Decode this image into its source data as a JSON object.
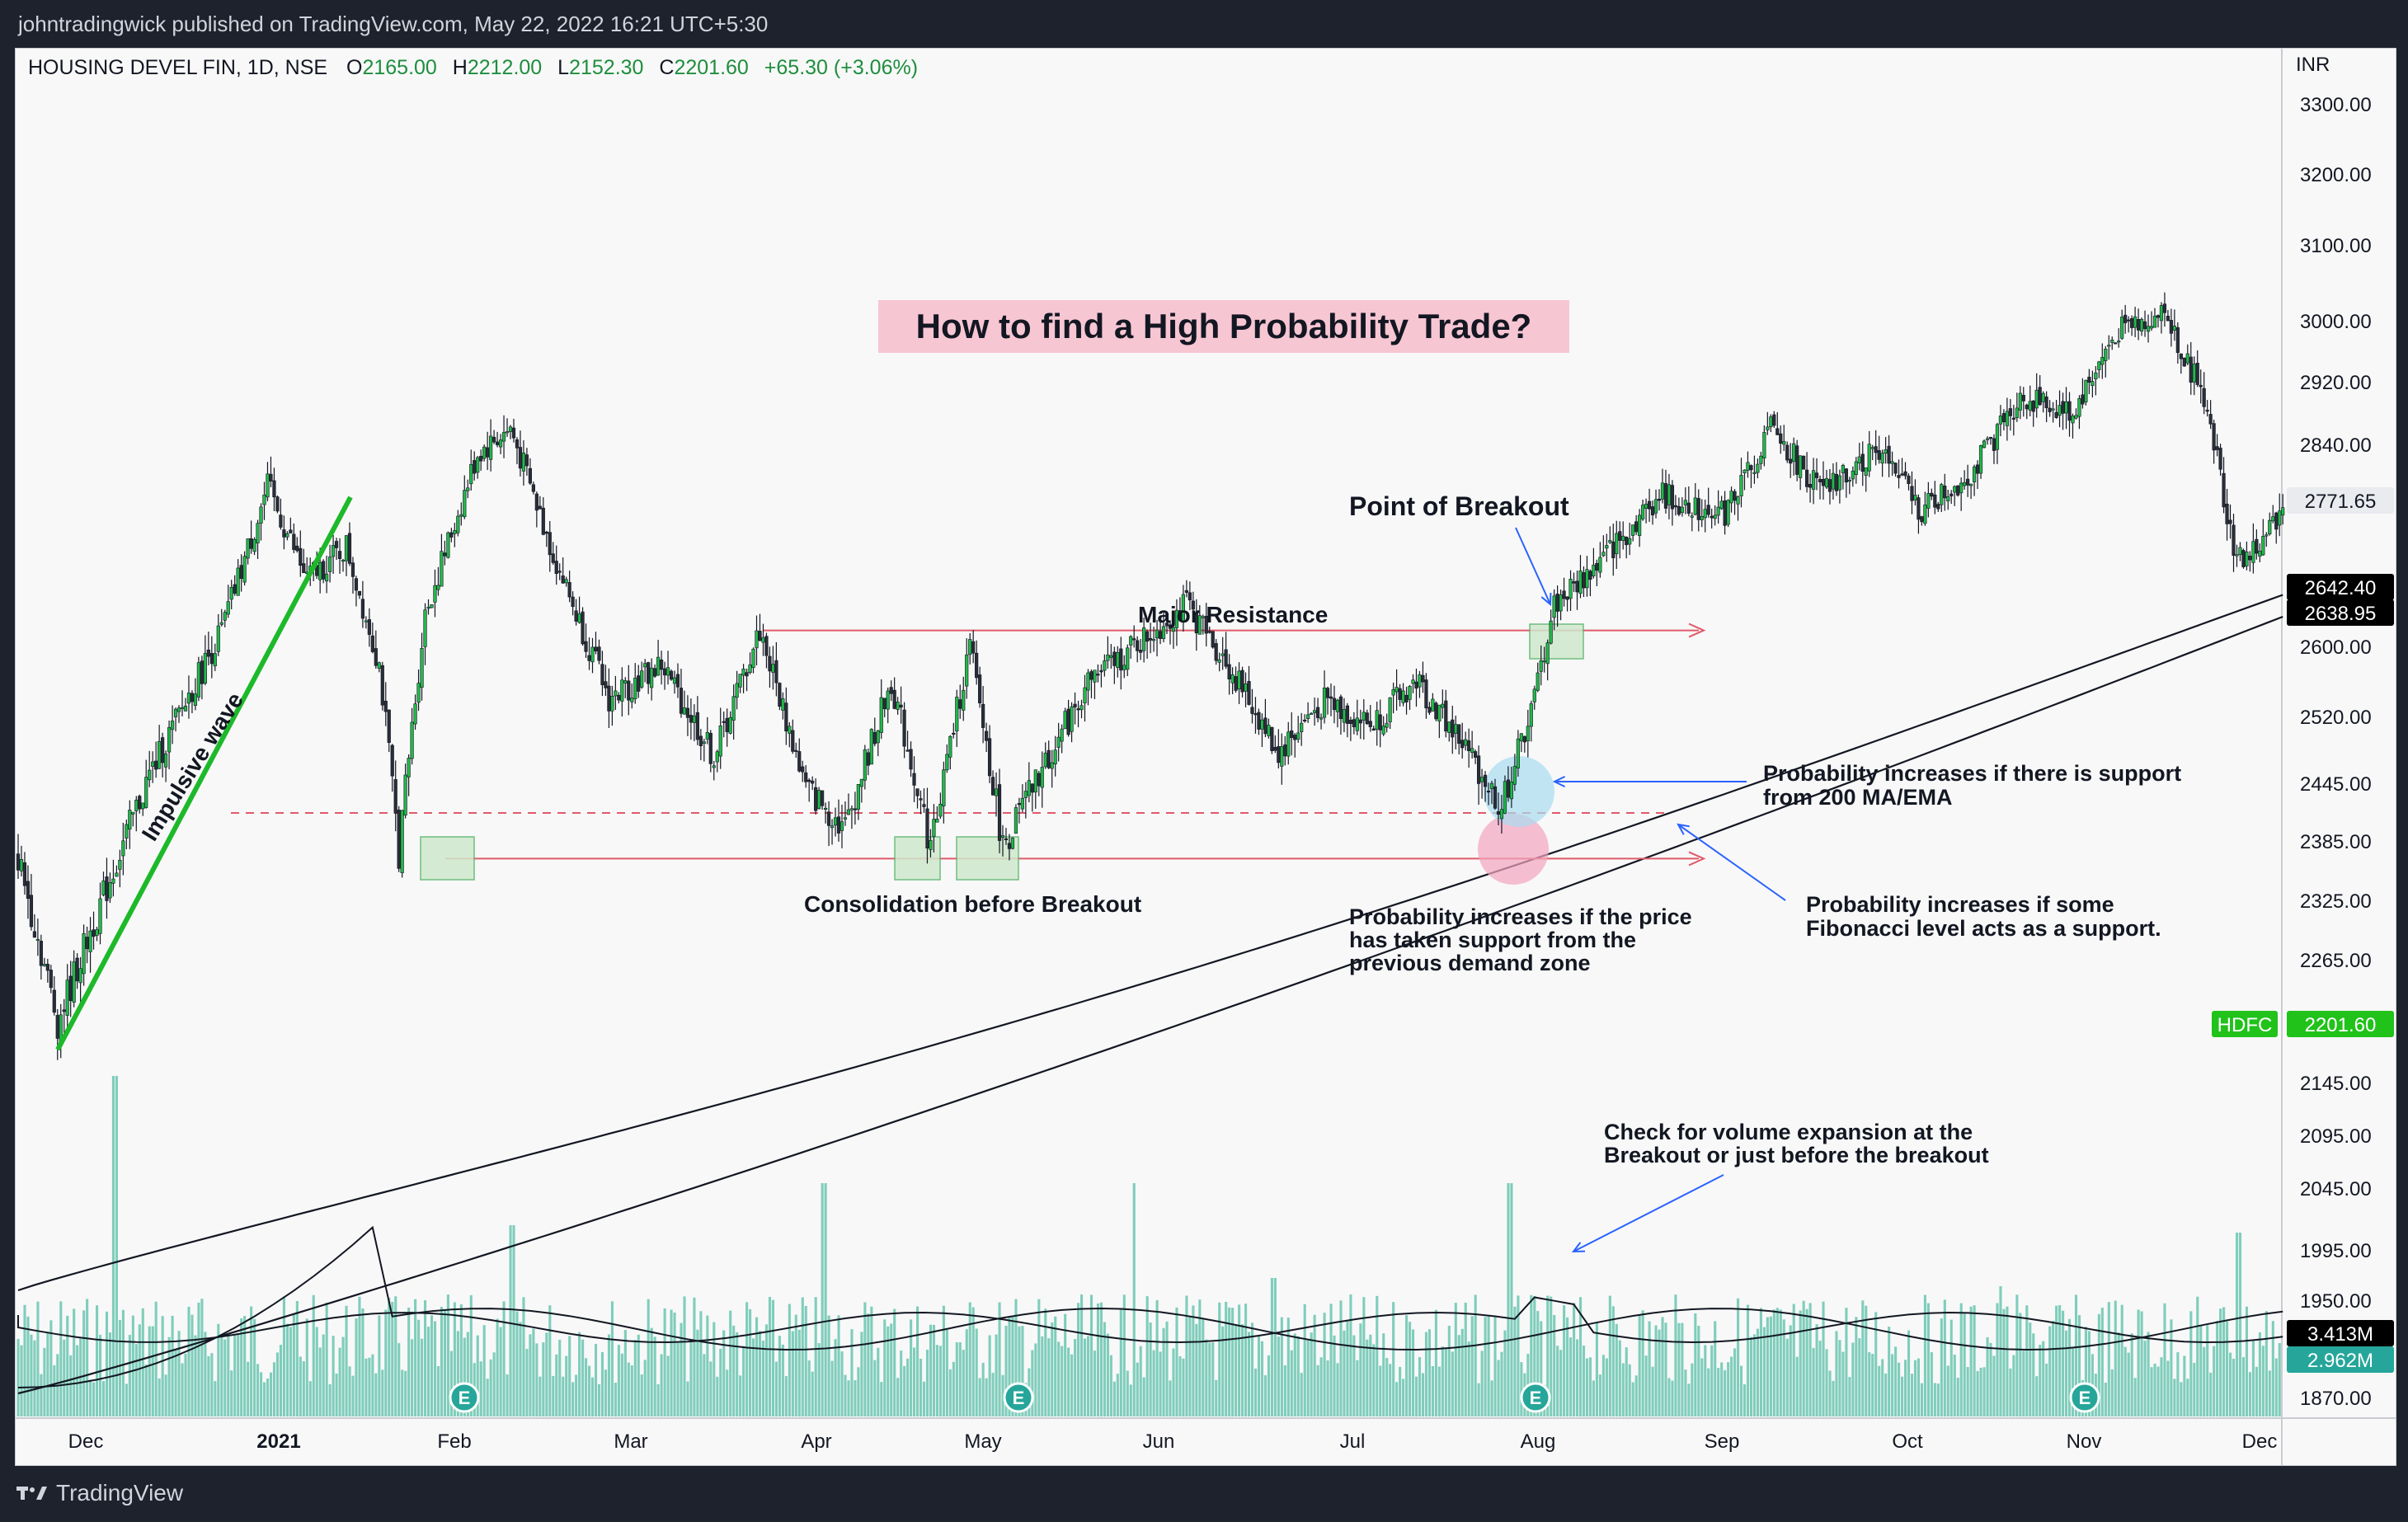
{
  "header": {
    "publish_line": "johntradingwick published on TradingView.com, May 22, 2022 16:21 UTC+5:30"
  },
  "legend": {
    "symbol_line": "HOUSING DEVEL FIN, 1D, NSE",
    "open_label": "O",
    "open": "2165.00",
    "high_label": "H",
    "high": "2212.00",
    "low_label": "L",
    "low": "2152.30",
    "close_label": "C",
    "close": "2201.60",
    "change": "+65.30 (+3.06%)"
  },
  "footer": {
    "brand": "TradingView"
  },
  "colors": {
    "up": "#22b84a",
    "down": "#2a2e39",
    "volume": "#7fcdbb",
    "resistance": "#e05a6a",
    "title_bg": "#f7c6d3",
    "arrow": "#2962ff",
    "zone_green": "#cfe8cc",
    "zone_pink": "#f4a4bf",
    "zone_blue": "#a8dcef"
  },
  "chart_data": {
    "type": "candlestick",
    "title": "How to find a High Probability Trade?",
    "currency": "INR",
    "y_ticks": [
      "3300.00",
      "3200.00",
      "3100.00",
      "3000.00",
      "2920.00",
      "2840.00",
      "2600.00",
      "2520.00",
      "2445.00",
      "2385.00",
      "2325.00",
      "2265.00",
      "2145.00",
      "2095.00",
      "2045.00",
      "1995.00",
      "1950.00",
      "1870.00"
    ],
    "x_ticks": [
      "Dec",
      "2021",
      "Feb",
      "Mar",
      "Apr",
      "May",
      "Jun",
      "Jul",
      "Aug",
      "Sep",
      "Oct",
      "Nov",
      "Dec"
    ],
    "price_labels": [
      {
        "text": "2771.65",
        "style": "light"
      },
      {
        "text": "2642.40",
        "style": "dark"
      },
      {
        "text": "2638.95",
        "style": "dark"
      },
      {
        "text": "HDFC",
        "style": "green"
      },
      {
        "text": "2201.60",
        "style": "green"
      },
      {
        "text": "3.413M",
        "style": "dark"
      },
      {
        "text": "2.962M",
        "style": "teal"
      }
    ],
    "key_prices": {
      "major_resistance": 2620,
      "support_dashed": 2415,
      "demand_zone": 2368,
      "impulse_start": 2205,
      "impulse_end": 2785,
      "year_high": 3025
    },
    "price_path": [
      {
        "d": 0,
        "c": 2370
      },
      {
        "d": 12,
        "c": 2205
      },
      {
        "d": 40,
        "c": 2455
      },
      {
        "d": 62,
        "c": 2620
      },
      {
        "d": 76,
        "c": 2790
      },
      {
        "d": 88,
        "c": 2680
      },
      {
        "d": 100,
        "c": 2720
      },
      {
        "d": 110,
        "c": 2580
      },
      {
        "d": 116,
        "c": 2375
      },
      {
        "d": 124,
        "c": 2640
      },
      {
        "d": 140,
        "c": 2830
      },
      {
        "d": 150,
        "c": 2860
      },
      {
        "d": 164,
        "c": 2700
      },
      {
        "d": 180,
        "c": 2540
      },
      {
        "d": 196,
        "c": 2580
      },
      {
        "d": 212,
        "c": 2475
      },
      {
        "d": 226,
        "c": 2620
      },
      {
        "d": 240,
        "c": 2440
      },
      {
        "d": 252,
        "c": 2400
      },
      {
        "d": 266,
        "c": 2560
      },
      {
        "d": 278,
        "c": 2380
      },
      {
        "d": 290,
        "c": 2600
      },
      {
        "d": 300,
        "c": 2380
      },
      {
        "d": 312,
        "c": 2460
      },
      {
        "d": 326,
        "c": 2560
      },
      {
        "d": 340,
        "c": 2600
      },
      {
        "d": 356,
        "c": 2650
      },
      {
        "d": 370,
        "c": 2570
      },
      {
        "d": 384,
        "c": 2480
      },
      {
        "d": 398,
        "c": 2540
      },
      {
        "d": 412,
        "c": 2510
      },
      {
        "d": 426,
        "c": 2560
      },
      {
        "d": 440,
        "c": 2490
      },
      {
        "d": 452,
        "c": 2420
      },
      {
        "d": 462,
        "c": 2540
      },
      {
        "d": 468,
        "c": 2650
      },
      {
        "d": 482,
        "c": 2700
      },
      {
        "d": 500,
        "c": 2780
      },
      {
        "d": 520,
        "c": 2760
      },
      {
        "d": 534,
        "c": 2860
      },
      {
        "d": 550,
        "c": 2780
      },
      {
        "d": 566,
        "c": 2840
      },
      {
        "d": 580,
        "c": 2760
      },
      {
        "d": 596,
        "c": 2810
      },
      {
        "d": 610,
        "c": 2900
      },
      {
        "d": 626,
        "c": 2880
      },
      {
        "d": 640,
        "c": 2990
      },
      {
        "d": 654,
        "c": 3010
      },
      {
        "d": 666,
        "c": 2900
      },
      {
        "d": 676,
        "c": 2700
      },
      {
        "d": 684,
        "c": 2720
      },
      {
        "d": 690,
        "c": 2771.65
      }
    ],
    "volume_note": "Volume bars with average line; spike near breakout",
    "annotations": [
      {
        "id": "title",
        "text": "How to find a High Probability Trade?"
      },
      {
        "id": "impulse",
        "text": "Impulsive wave"
      },
      {
        "id": "resistance",
        "text": "Major Resistance"
      },
      {
        "id": "consolidation",
        "text": "Consolidation before Breakout"
      },
      {
        "id": "breakout",
        "text": "Point of Breakout"
      },
      {
        "id": "ma_support_1",
        "text": "Probability increases if there is support"
      },
      {
        "id": "ma_support_2",
        "text": "from 200 MA/EMA"
      },
      {
        "id": "fib_1",
        "text": "Probability increases if some"
      },
      {
        "id": "fib_2",
        "text": "Fibonacci level acts as a support."
      },
      {
        "id": "demand_1",
        "text": "Probability increases if the price"
      },
      {
        "id": "demand_2",
        "text": "has taken support from the"
      },
      {
        "id": "demand_3",
        "text": "previous demand zone"
      },
      {
        "id": "volume_1",
        "text": "Check for volume expansion at the"
      },
      {
        "id": "volume_2",
        "text": "Breakout or just before the breakout"
      }
    ],
    "earnings_marker": "E"
  }
}
